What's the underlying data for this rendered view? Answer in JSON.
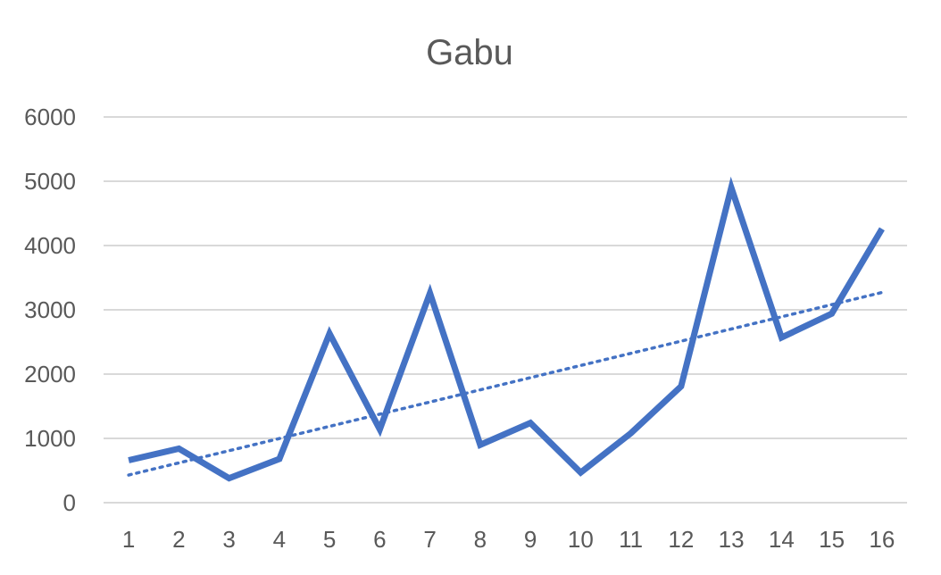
{
  "chart_data": {
    "type": "line",
    "title": "Gabu",
    "xlabel": "",
    "ylabel": "",
    "categories": [
      "1",
      "2",
      "3",
      "4",
      "5",
      "6",
      "7",
      "8",
      "9",
      "10",
      "11",
      "12",
      "13",
      "14",
      "15",
      "16"
    ],
    "series": [
      {
        "values": [
          660,
          840,
          380,
          680,
          2630,
          1140,
          3260,
          900,
          1240,
          470,
          1080,
          1810,
          4900,
          2570,
          2940,
          4260
        ]
      }
    ],
    "trendline": {
      "type": "linear",
      "style": "dotted",
      "start": 430,
      "end": 3270
    },
    "ylim": [
      0,
      6000
    ],
    "yticks": [
      0,
      1000,
      2000,
      3000,
      4000,
      5000,
      6000
    ],
    "grid": true,
    "legend": "none",
    "colors": {
      "series": "#4472c4",
      "grid": "#d9d9d9",
      "text": "#595959"
    }
  }
}
